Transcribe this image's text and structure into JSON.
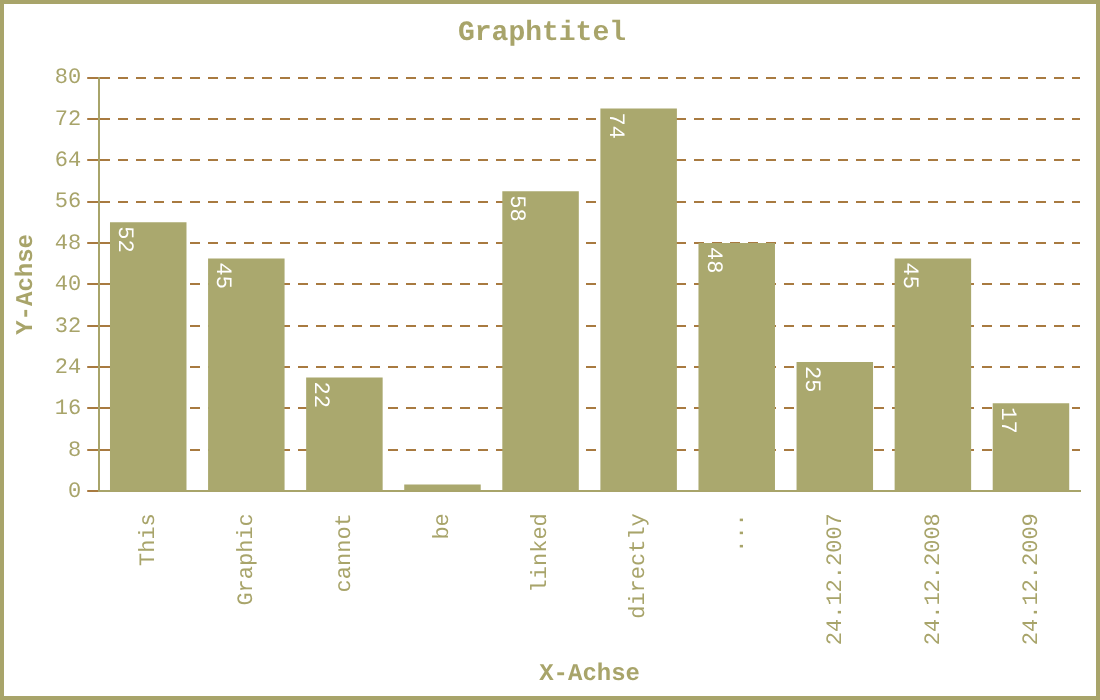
{
  "chart_data": {
    "type": "bar",
    "title": "Graphtitel",
    "xlabel": "X-Achse",
    "ylabel": "Y-Achse",
    "categories": [
      "This",
      "Graphic",
      "cannot",
      "be",
      "linked",
      "directly",
      "...",
      "24.12.2007",
      "24.12.2008",
      "24.12.2009"
    ],
    "values": [
      52,
      45,
      22,
      1.3,
      58,
      74,
      48,
      25,
      45,
      17
    ],
    "value_labels": [
      "52",
      "45",
      "22",
      null,
      "58",
      "74",
      "48",
      "25",
      "45",
      "17"
    ],
    "color": "#aaa86e",
    "ylim": [
      0,
      80
    ],
    "yticks": [
      0,
      8,
      16,
      24,
      32,
      40,
      48,
      56,
      64,
      72,
      80
    ],
    "grid": "y",
    "legend": false
  }
}
